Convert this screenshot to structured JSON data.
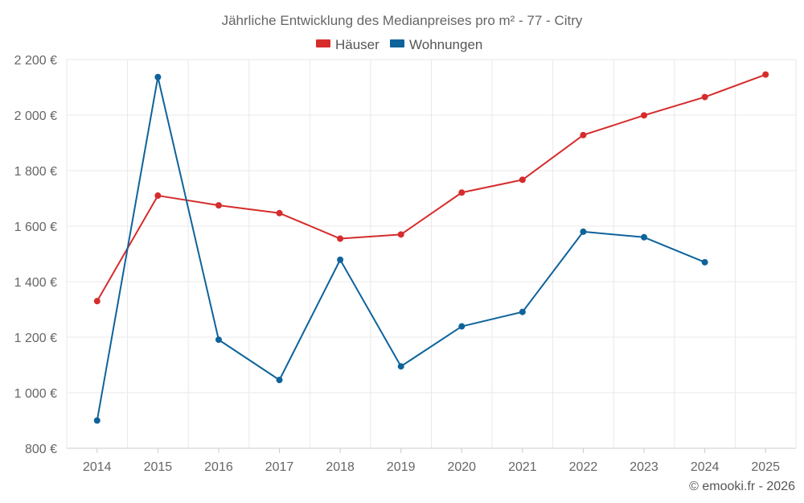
{
  "chart_data": {
    "type": "line",
    "title": "Jährliche Entwicklung des Medianpreises pro m² - 77 - Citry",
    "categories": [
      "2014",
      "2015",
      "2016",
      "2017",
      "2018",
      "2019",
      "2020",
      "2021",
      "2022",
      "2023",
      "2024",
      "2025"
    ],
    "series": [
      {
        "name": "Häuser",
        "color": "#d62c2c",
        "values": [
          1330,
          1710,
          1675,
          1647,
          1555,
          1570,
          1721,
          1767,
          1928,
          1999,
          2065,
          2146
        ]
      },
      {
        "name": "Wohnungen",
        "color": "#0e639b",
        "values": [
          900,
          2137,
          1191,
          1046,
          1479,
          1095,
          1239,
          1291,
          1580,
          1560,
          1470,
          null
        ]
      }
    ],
    "y_ticks": [
      800,
      1000,
      1200,
      1400,
      1600,
      1800,
      2000,
      2200
    ],
    "y_tick_labels": [
      "800 €",
      "1 000 €",
      "1 200 €",
      "1 400 €",
      "1 600 €",
      "1 800 €",
      "2 000 €",
      "2 200 €"
    ],
    "ylim": [
      800,
      2200
    ],
    "grid": true,
    "legend_position": "top-center",
    "credit": "© emooki.fr - 2026"
  }
}
